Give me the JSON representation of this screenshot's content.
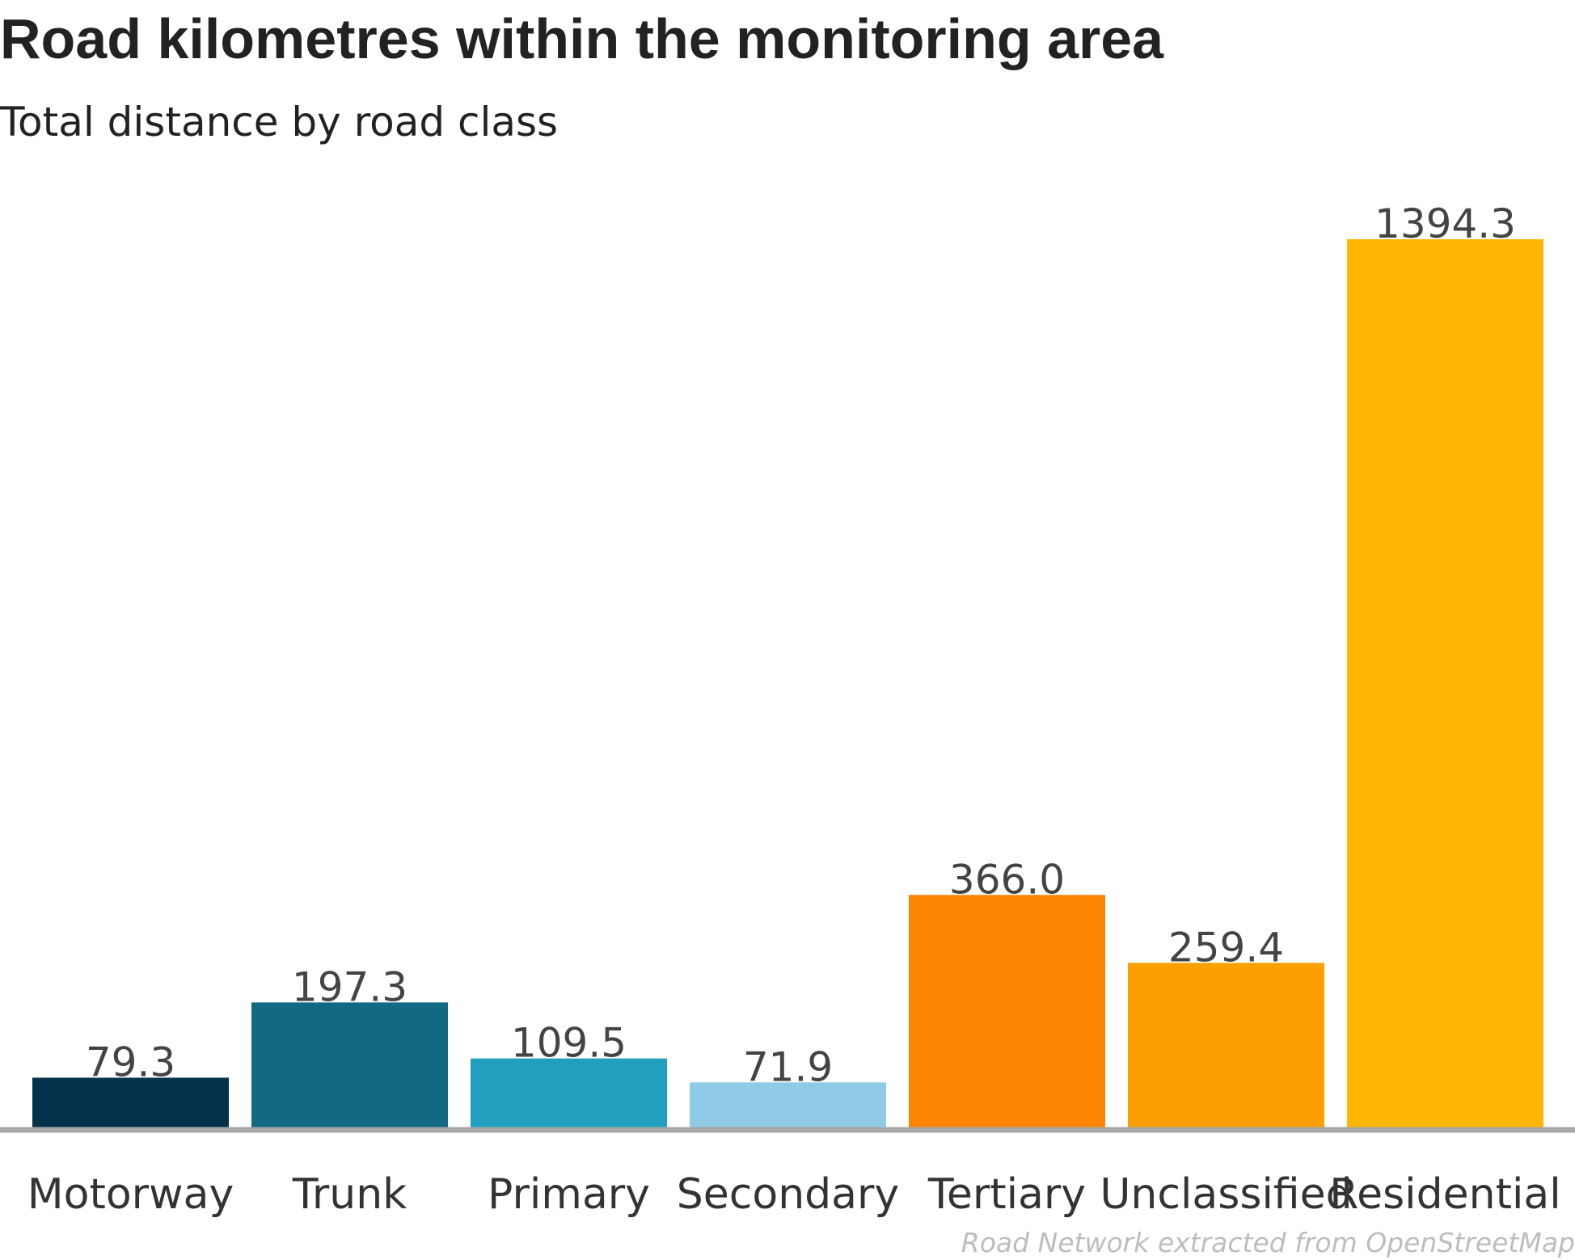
{
  "chart_data": {
    "type": "bar",
    "title": "Road kilometres within the monitoring area",
    "subtitle": "Total distance by road class",
    "caption": "Road Network extracted from OpenStreetMap",
    "categories": [
      "Motorway",
      "Trunk",
      "Primary",
      "Secondary",
      "Tertiary",
      "Unclassified",
      "Residential"
    ],
    "values": [
      79.3,
      197.3,
      109.5,
      71.9,
      366.0,
      259.4,
      1394.3
    ],
    "value_labels": [
      "79.3",
      "197.3",
      "109.5",
      "71.9",
      "366.0",
      "259.4",
      "1394.3"
    ],
    "colors": [
      "#04324a",
      "#136984",
      "#229fbf",
      "#8fcae6",
      "#fb8500",
      "#fc9f03",
      "#ffb703"
    ],
    "baseline_color": "#a8a8a8",
    "ylim": [
      0,
      1394.3
    ],
    "grid": false,
    "legend": "none"
  }
}
